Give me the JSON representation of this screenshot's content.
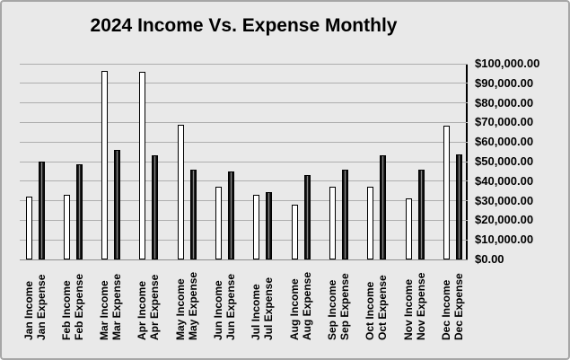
{
  "chart_data": {
    "type": "bar",
    "title": "2024 Income Vs. Expense Monthly",
    "categories": [
      "Jan Income",
      "Jan Expense",
      "Feb Income",
      "Feb Expense",
      "Mar Income",
      "Mar Expense",
      "Apr Income",
      "Apr Expense",
      "May Income",
      "May Expense",
      "Jun Income",
      "Jun Expense",
      "Jul Income",
      "Jul Expense",
      "Aug Income",
      "Aug Expense",
      "Sep Income",
      "Sep Expense",
      "Oct Income",
      "Oct Expense",
      "Nov Income",
      "Nov Expense",
      "Dec Income",
      "Dec Expense"
    ],
    "values": [
      32000,
      50000,
      33000,
      48500,
      96500,
      56000,
      96000,
      53000,
      69000,
      46000,
      37000,
      45000,
      33000,
      34500,
      28000,
      43000,
      37000,
      46000,
      37000,
      53000,
      31000,
      46000,
      68500,
      53500
    ],
    "series": [
      {
        "name": "Income",
        "values": [
          32000,
          33000,
          96500,
          96000,
          69000,
          37000,
          33000,
          28000,
          37000,
          37000,
          31000,
          68500
        ]
      },
      {
        "name": "Expense",
        "values": [
          50000,
          48500,
          56000,
          53000,
          46000,
          45000,
          34500,
          43000,
          46000,
          53000,
          46000,
          53500
        ]
      }
    ],
    "months": [
      "Jan",
      "Feb",
      "Mar",
      "Apr",
      "May",
      "Jun",
      "Jul",
      "Aug",
      "Sep",
      "Oct",
      "Nov",
      "Dec"
    ],
    "xlabel": "",
    "ylabel": "",
    "ylim": [
      0,
      100000
    ],
    "y_ticks": [
      "$100,000.00",
      "$90,000.00",
      "$80,000.00",
      "$70,000.00",
      "$60,000.00",
      "$50,000.00",
      "$40,000.00",
      "$30,000.00",
      "$20,000.00",
      "$10,000.00",
      "$0.00"
    ],
    "grid": true,
    "y_axis_position": "right",
    "x_label_rotation": 90,
    "legend": "none",
    "bar_style": {
      "income_fill": "#ffffff",
      "expense_fill": "#0d0d0d",
      "expense_highlight": "#b5b5b5",
      "outline": "#000000"
    },
    "background": "#e9e9e9",
    "gridline_color": "#aeaeae"
  }
}
